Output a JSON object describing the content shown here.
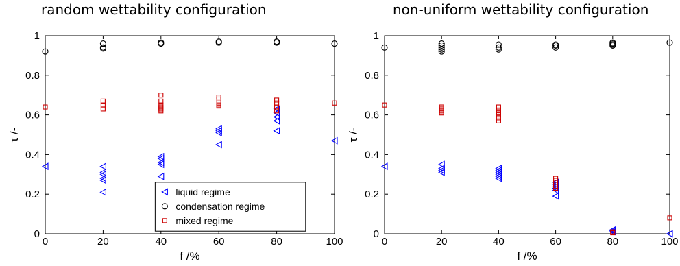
{
  "chart_data": [
    {
      "type": "scatter",
      "title": "random wettability configuration",
      "xlabel": "f /%",
      "ylabel": "τ /-",
      "xlim": [
        0,
        100
      ],
      "ylim": [
        0,
        1
      ],
      "xticks": [
        "0",
        "20",
        "40",
        "60",
        "80",
        "100"
      ],
      "yticks": [
        "0",
        "0.2",
        "0.4",
        "0.6",
        "0.8",
        "1"
      ],
      "legend_position": "bottom-center",
      "series": [
        {
          "name": "liquid regime",
          "marker": "triangle-left",
          "color": "#0000ff",
          "points": [
            [
              0,
              0.34
            ],
            [
              20,
              0.34
            ],
            [
              20,
              0.31
            ],
            [
              20,
              0.3
            ],
            [
              20,
              0.28
            ],
            [
              20,
              0.27
            ],
            [
              20,
              0.21
            ],
            [
              40,
              0.39
            ],
            [
              40,
              0.38
            ],
            [
              40,
              0.36
            ],
            [
              40,
              0.35
            ],
            [
              40,
              0.29
            ],
            [
              60,
              0.53
            ],
            [
              60,
              0.52
            ],
            [
              60,
              0.51
            ],
            [
              60,
              0.45
            ],
            [
              80,
              0.63
            ],
            [
              80,
              0.61
            ],
            [
              80,
              0.59
            ],
            [
              80,
              0.57
            ],
            [
              80,
              0.52
            ],
            [
              100,
              0.47
            ]
          ]
        },
        {
          "name": "condensation regime",
          "marker": "circle",
          "color": "#000000",
          "points": [
            [
              0,
              0.92
            ],
            [
              20,
              0.96
            ],
            [
              20,
              0.94
            ],
            [
              20,
              0.935
            ],
            [
              40,
              0.965
            ],
            [
              40,
              0.96
            ],
            [
              60,
              0.97
            ],
            [
              60,
              0.965
            ],
            [
              80,
              0.97
            ],
            [
              80,
              0.965
            ],
            [
              100,
              0.96
            ]
          ]
        },
        {
          "name": "mixed regime",
          "marker": "square",
          "color": "#cc0000",
          "points": [
            [
              0,
              0.64
            ],
            [
              20,
              0.67
            ],
            [
              20,
              0.65
            ],
            [
              20,
              0.63
            ],
            [
              40,
              0.7
            ],
            [
              40,
              0.67
            ],
            [
              40,
              0.65
            ],
            [
              40,
              0.64
            ],
            [
              40,
              0.63
            ],
            [
              40,
              0.62
            ],
            [
              60,
              0.69
            ],
            [
              60,
              0.68
            ],
            [
              60,
              0.66
            ],
            [
              60,
              0.65
            ],
            [
              60,
              0.645
            ],
            [
              80,
              0.675
            ],
            [
              80,
              0.66
            ],
            [
              80,
              0.64
            ],
            [
              80,
              0.62
            ],
            [
              100,
              0.66
            ]
          ]
        }
      ]
    },
    {
      "type": "scatter",
      "title": "non-uniform wettability configuration",
      "xlabel": "f /%",
      "ylabel": "τ /-",
      "xlim": [
        0,
        100
      ],
      "ylim": [
        0,
        1
      ],
      "xticks": [
        "0",
        "20",
        "40",
        "60",
        "80",
        "100"
      ],
      "yticks": [
        "0",
        "0.2",
        "0.4",
        "0.6",
        "0.8",
        "1"
      ],
      "series": [
        {
          "name": "liquid regime",
          "marker": "triangle-left",
          "color": "#0000ff",
          "points": [
            [
              0,
              0.34
            ],
            [
              20,
              0.35
            ],
            [
              20,
              0.33
            ],
            [
              20,
              0.32
            ],
            [
              20,
              0.31
            ],
            [
              40,
              0.33
            ],
            [
              40,
              0.32
            ],
            [
              40,
              0.31
            ],
            [
              40,
              0.3
            ],
            [
              40,
              0.29
            ],
            [
              40,
              0.28
            ],
            [
              60,
              0.26
            ],
            [
              60,
              0.25
            ],
            [
              60,
              0.24
            ],
            [
              60,
              0.23
            ],
            [
              60,
              0.22
            ],
            [
              60,
              0.19
            ],
            [
              80,
              0.02
            ],
            [
              80,
              0.015
            ],
            [
              80,
              0.01
            ],
            [
              100,
              0.0
            ]
          ]
        },
        {
          "name": "condensation regime",
          "marker": "circle",
          "color": "#000000",
          "points": [
            [
              0,
              0.94
            ],
            [
              20,
              0.96
            ],
            [
              20,
              0.95
            ],
            [
              20,
              0.94
            ],
            [
              20,
              0.93
            ],
            [
              20,
              0.92
            ],
            [
              40,
              0.955
            ],
            [
              40,
              0.94
            ],
            [
              40,
              0.93
            ],
            [
              60,
              0.955
            ],
            [
              60,
              0.95
            ],
            [
              60,
              0.94
            ],
            [
              80,
              0.965
            ],
            [
              80,
              0.96
            ],
            [
              80,
              0.955
            ],
            [
              80,
              0.95
            ],
            [
              100,
              0.965
            ]
          ]
        },
        {
          "name": "mixed regime",
          "marker": "square",
          "color": "#cc0000",
          "points": [
            [
              0,
              0.65
            ],
            [
              20,
              0.64
            ],
            [
              20,
              0.63
            ],
            [
              20,
              0.62
            ],
            [
              20,
              0.61
            ],
            [
              40,
              0.64
            ],
            [
              40,
              0.625
            ],
            [
              40,
              0.61
            ],
            [
              40,
              0.6
            ],
            [
              40,
              0.585
            ],
            [
              40,
              0.57
            ],
            [
              60,
              0.28
            ],
            [
              60,
              0.27
            ],
            [
              60,
              0.26
            ],
            [
              60,
              0.25
            ],
            [
              60,
              0.24
            ],
            [
              60,
              0.23
            ],
            [
              80,
              0.01
            ],
            [
              80,
              0.005
            ],
            [
              100,
              0.08
            ]
          ]
        }
      ]
    }
  ]
}
